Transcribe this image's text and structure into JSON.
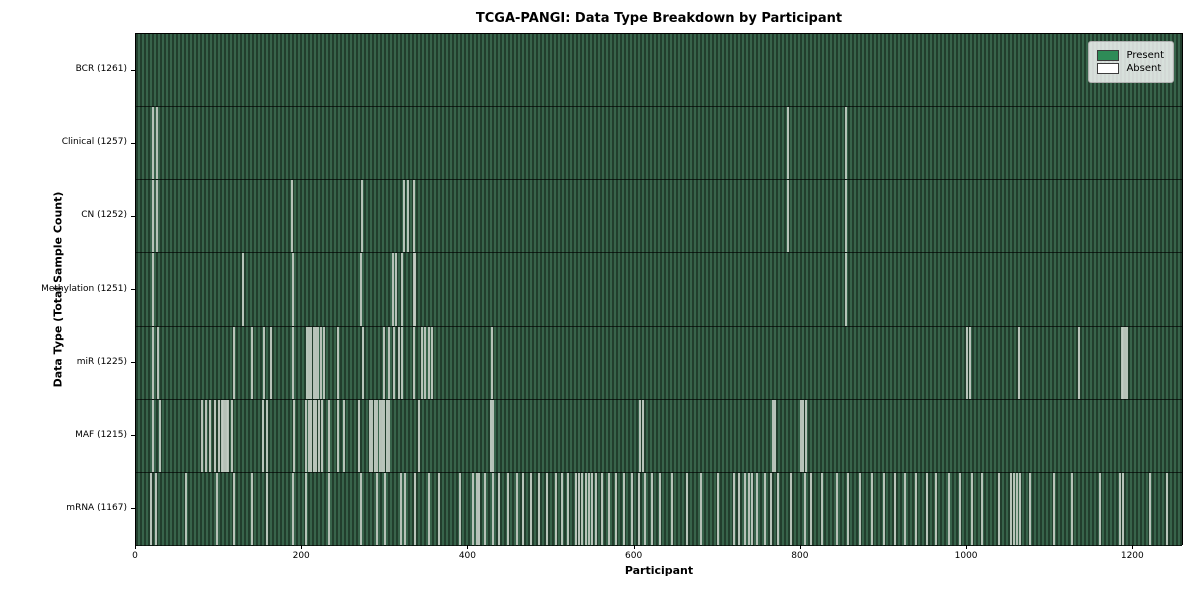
{
  "chart_data": {
    "type": "heatmap",
    "title": "TCGA-PANGI: Data Type Breakdown by Participant",
    "xlabel": "Participant",
    "ylabel": "Data Type (Total Sample Count)",
    "x_ticks": [
      0,
      200,
      400,
      600,
      800,
      1000,
      1200
    ],
    "x_range": [
      0,
      1261
    ],
    "total_participants": 1261,
    "legend": [
      {
        "label": "Present",
        "color": "#2e8b57"
      },
      {
        "label": "Absent",
        "color": "#ffffff"
      }
    ],
    "rows": [
      {
        "label": "BCR (1261)",
        "data_type": "BCR",
        "present_count": 1261,
        "absent_at": []
      },
      {
        "label": "Clinical (1257)",
        "data_type": "Clinical",
        "present_count": 1257,
        "absent_at": [
          21,
          25,
          785,
          854
        ]
      },
      {
        "label": "CN (1252)",
        "data_type": "CN",
        "present_count": 1252,
        "absent_at": [
          21,
          25,
          188,
          272,
          322,
          327,
          334,
          785,
          854
        ]
      },
      {
        "label": "Methylation (1251)",
        "data_type": "Methylation",
        "present_count": 1251,
        "absent_at": [
          21,
          129,
          189,
          271,
          309,
          313,
          320,
          334,
          336,
          854
        ]
      },
      {
        "label": "miR (1225)",
        "data_type": "miR",
        "present_count": 1225,
        "absent_at": [
          21,
          26,
          118,
          140,
          154,
          163,
          189,
          206,
          208,
          211,
          214,
          216,
          219,
          222,
          226,
          243,
          273,
          298,
          305,
          311,
          317,
          320,
          334,
          344,
          348,
          352,
          356,
          428,
          1000,
          1004,
          1062,
          1135,
          1186,
          1188,
          1190,
          1192
        ]
      },
      {
        "label": "MAF (1215)",
        "data_type": "MAF",
        "present_count": 1215,
        "absent_at": [
          21,
          29,
          79,
          84,
          89,
          95,
          100,
          103,
          105,
          107,
          109,
          111,
          116,
          153,
          158,
          190,
          205,
          208,
          211,
          214,
          217,
          220,
          224,
          232,
          243,
          250,
          268,
          281,
          284,
          287,
          290,
          293,
          296,
          299,
          302,
          305,
          341,
          427,
          429,
          607,
          610,
          766,
          769,
          800,
          803,
          806
        ]
      },
      {
        "label": "mRNA (1167)",
        "data_type": "mRNA",
        "present_count": 1167,
        "absent_at": [
          18,
          24,
          60,
          97,
          118,
          140,
          158,
          189,
          204,
          232,
          271,
          290,
          300,
          319,
          324,
          336,
          353,
          365,
          390,
          406,
          410,
          413,
          420,
          430,
          437,
          448,
          458,
          466,
          475,
          485,
          495,
          505,
          512,
          520,
          529,
          533,
          537,
          541,
          545,
          549,
          553,
          561,
          569,
          577,
          587,
          597,
          605,
          612,
          621,
          630,
          645,
          663,
          680,
          700,
          719,
          726,
          733,
          738,
          741,
          747,
          757,
          764,
          772,
          788,
          805,
          812,
          825,
          843,
          857,
          871,
          886,
          900,
          913,
          925,
          938,
          952,
          963,
          978,
          992,
          1006,
          1018,
          1038,
          1053,
          1056,
          1060,
          1064,
          1076,
          1104,
          1126,
          1160,
          1184,
          1188,
          1220,
          1240
        ]
      }
    ]
  }
}
